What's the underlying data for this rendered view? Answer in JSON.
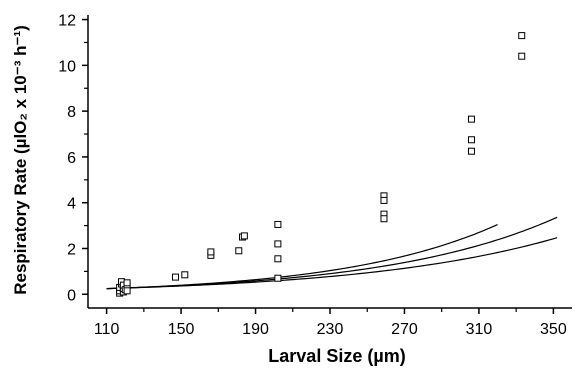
{
  "chart_data": {
    "type": "scatter",
    "title": "",
    "xlabel": "Larval Size (µm)",
    "ylabel": "Respiratory Rate (µlO₂ x 10⁻³ h⁻¹)",
    "xlim": [
      100,
      360
    ],
    "ylim": [
      -0.6,
      12.2
    ],
    "x_ticks": [
      110,
      150,
      190,
      230,
      270,
      310,
      350
    ],
    "y_ticks": [
      0,
      2,
      4,
      6,
      8,
      10,
      12
    ],
    "grid": false,
    "legend": "none",
    "colors": {
      "axis": "#000000",
      "marker": "#000000",
      "curve": "#000000"
    },
    "series": [
      {
        "marker": "open-square",
        "points": [
          [
            117,
            0.05
          ],
          [
            117,
            0.15
          ],
          [
            117,
            0.3
          ],
          [
            118,
            0.45
          ],
          [
            118,
            0.55
          ],
          [
            119,
            0.1
          ],
          [
            119,
            0.25
          ],
          [
            119,
            0.4
          ],
          [
            120,
            0.2
          ],
          [
            121,
            0.35
          ],
          [
            121,
            0.5
          ],
          [
            121,
            0.15
          ],
          [
            147,
            0.75
          ],
          [
            152,
            0.85
          ],
          [
            166,
            1.7
          ],
          [
            166,
            1.85
          ],
          [
            181,
            1.9
          ],
          [
            183,
            2.5
          ],
          [
            184,
            2.55
          ],
          [
            202,
            3.05
          ],
          [
            202,
            2.2
          ],
          [
            202,
            1.55
          ],
          [
            202,
            0.7
          ],
          [
            259,
            4.3
          ],
          [
            259,
            4.1
          ],
          [
            259,
            3.5
          ],
          [
            259,
            3.3
          ],
          [
            306,
            7.65
          ],
          [
            306,
            6.75
          ],
          [
            306,
            6.25
          ],
          [
            333,
            11.3
          ],
          [
            333,
            10.4
          ]
        ]
      }
    ],
    "curves": [
      {
        "k": 0.012,
        "x": [
          110,
          140,
          170,
          200,
          230,
          260,
          290,
          320
        ]
      },
      {
        "k": 0.0108,
        "x": [
          110,
          140,
          170,
          200,
          230,
          260,
          290,
          320,
          352
        ]
      },
      {
        "k": 0.0095,
        "x": [
          110,
          140,
          170,
          200,
          230,
          260,
          290,
          320,
          352
        ]
      }
    ],
    "curve_base": {
      "x0": 115,
      "y0": 0.26
    }
  }
}
